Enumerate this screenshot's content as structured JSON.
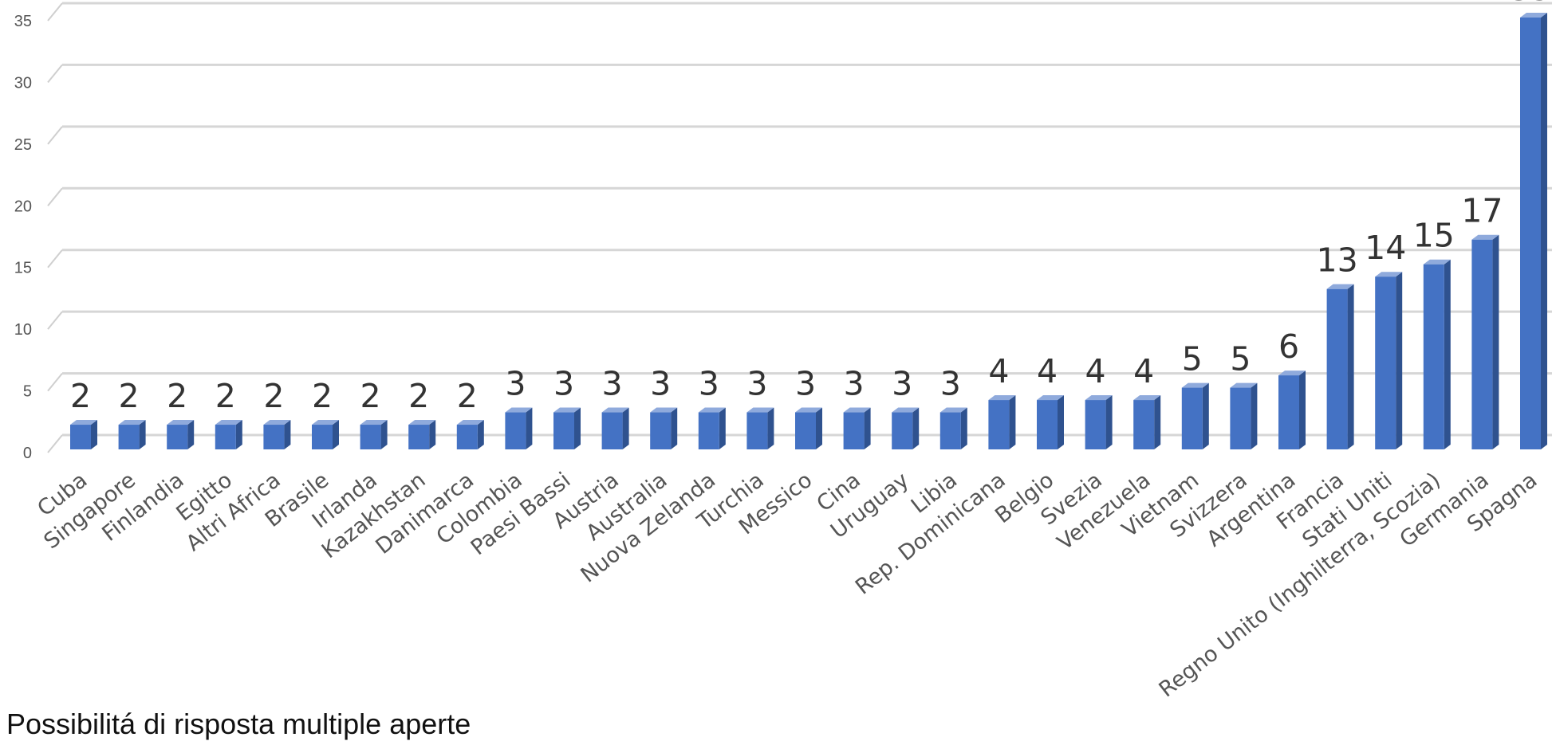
{
  "chart_data": {
    "type": "bar",
    "categories": [
      "Cuba",
      "Singapore",
      "Finlandia",
      "Egitto",
      "Altri Africa",
      "Brasile",
      "Irlanda",
      "Kazakhstan",
      "Danimarca",
      "Colombia",
      "Paesi Bassi",
      "Austria",
      "Australia",
      "Nuova Zelanda",
      "Turchia",
      "Messico",
      "Cina",
      "Uruguay",
      "Libia",
      "Rep. Dominicana",
      "Belgio",
      "Svezia",
      "Venezuela",
      "Vietnam",
      "Svizzera",
      "Argentina",
      "Francia",
      "Stati Uniti",
      "Regno Unito (Inghilterra, Scozia)",
      "Germania",
      "Spagna"
    ],
    "values": [
      2,
      2,
      2,
      2,
      2,
      2,
      2,
      2,
      2,
      3,
      3,
      3,
      3,
      3,
      3,
      3,
      3,
      3,
      3,
      4,
      4,
      4,
      4,
      5,
      5,
      6,
      13,
      14,
      15,
      17,
      35
    ],
    "yticks": [
      0,
      5,
      10,
      15,
      20,
      25,
      30,
      35
    ],
    "ylim": [
      0,
      35
    ],
    "grid": true,
    "legend": "none",
    "bar_color": "#4472c4",
    "bar_side_color": "#2f528f",
    "bar_top_color": "#8faadc",
    "title": "",
    "xlabel": "",
    "ylabel": ""
  },
  "footnote": "Possibilitá di risposta multiple aperte"
}
